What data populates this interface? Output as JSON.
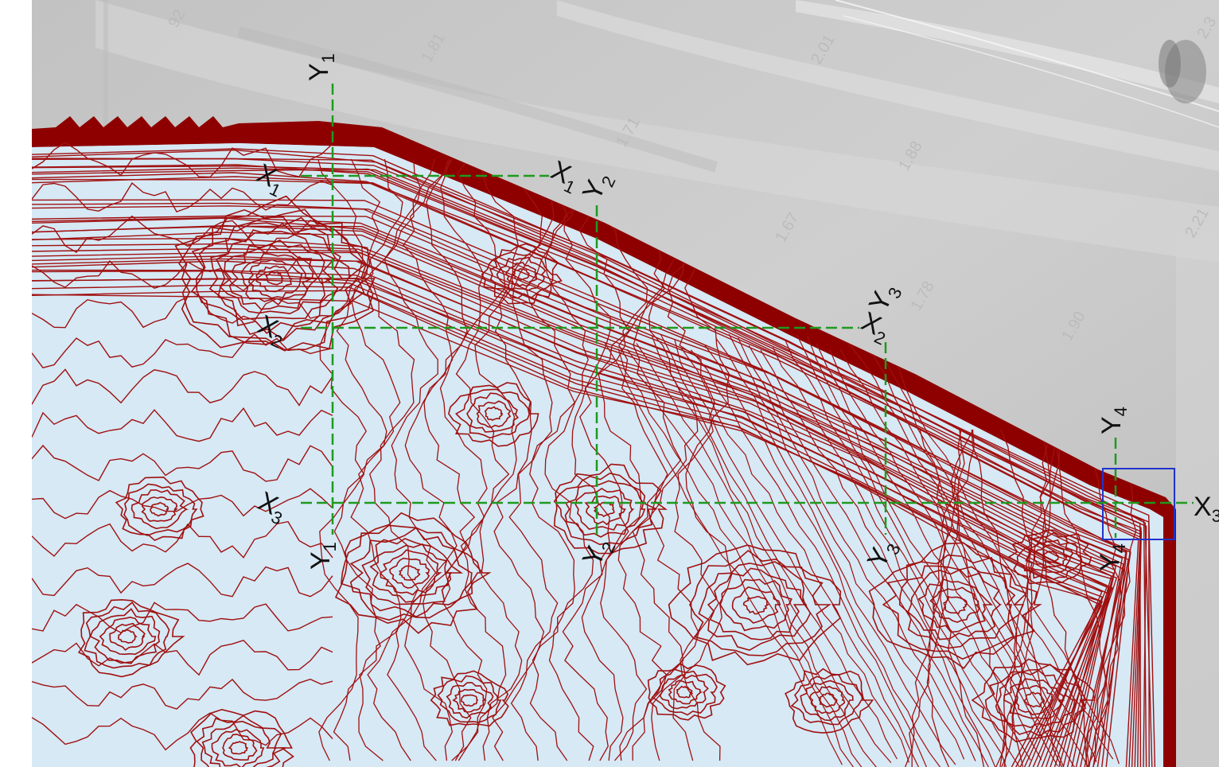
{
  "map": {
    "colors": {
      "background_left": "#ffffff",
      "aerial_photo": "#c9c9c9",
      "water_fill": "#d6e9f5",
      "contour": "#a01010",
      "bank": "#8e0000",
      "section_line": "#1e9a1e",
      "selection_box": "#2233cc",
      "label": "#111111"
    },
    "elevation_labels": [
      "92",
      "1.81",
      "2.01",
      "1.71",
      "1.88",
      "1.67",
      "1.78",
      "1.90",
      "2.21",
      "2.3"
    ],
    "sections": {
      "X1": {
        "start": {
          "letter": "X",
          "sub": "1"
        },
        "end": {
          "letter": "X",
          "sub": "1"
        }
      },
      "X2": {
        "start": {
          "letter": "X",
          "sub": "2"
        },
        "end": {
          "letter": "X",
          "sub": "2"
        }
      },
      "X3": {
        "start": {
          "letter": "X",
          "sub": "3"
        },
        "end": {
          "letter": "X",
          "sub": "3"
        }
      },
      "Y1": {
        "start": {
          "letter": "Y",
          "sub": "1"
        },
        "end": {
          "letter": "Y",
          "sub": "1"
        }
      },
      "Y2": {
        "start": {
          "letter": "Y",
          "sub": "2"
        },
        "end": {
          "letter": "Y",
          "sub": "2"
        }
      },
      "Y3": {
        "start": {
          "letter": "Y",
          "sub": "3"
        },
        "end": {
          "letter": "Y",
          "sub": "3"
        }
      },
      "Y4": {
        "start": {
          "letter": "Y",
          "sub": "4"
        },
        "end": {
          "letter": "Y",
          "sub": "4"
        }
      }
    }
  }
}
